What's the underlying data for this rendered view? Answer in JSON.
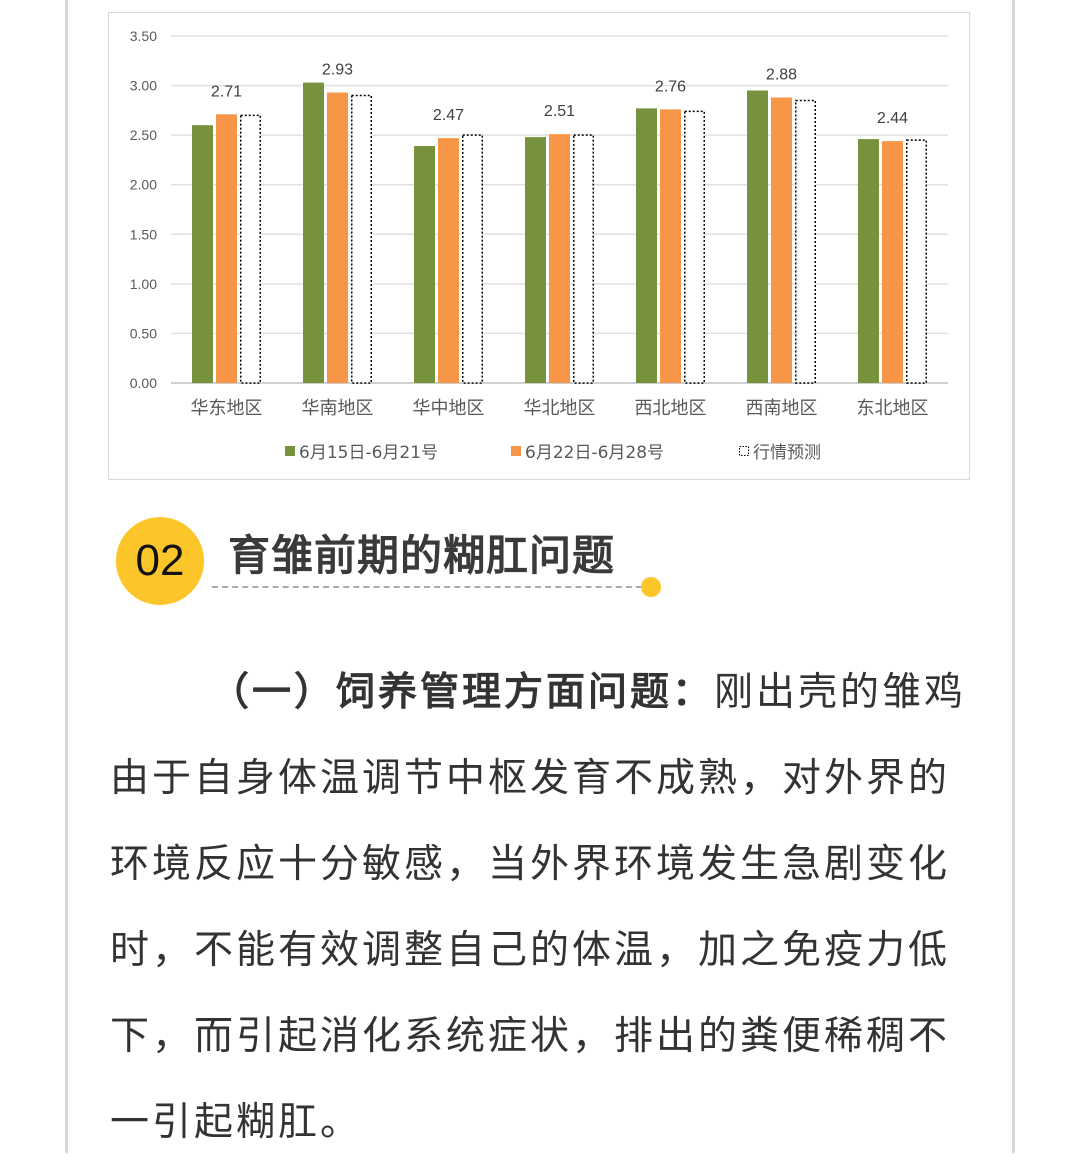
{
  "colors": {
    "green": "#76923c",
    "orange": "#f79646",
    "accent": "#fcc52a",
    "text": "#333333"
  },
  "chart_data": {
    "type": "bar",
    "categories": [
      "华东地区",
      "华南地区",
      "华中地区",
      "华北地区",
      "西北地区",
      "西南地区",
      "东北地区"
    ],
    "series": [
      {
        "name": "6月15日-6月21号",
        "values": [
          2.6,
          3.03,
          2.39,
          2.48,
          2.77,
          2.95,
          2.46
        ],
        "color": "#76923c",
        "style": "solid"
      },
      {
        "name": "6月22日-6月28号",
        "values": [
          2.71,
          2.93,
          2.47,
          2.51,
          2.76,
          2.88,
          2.44
        ],
        "color": "#f79646",
        "style": "solid"
      },
      {
        "name": "行情预测",
        "values": [
          2.7,
          2.9,
          2.5,
          2.5,
          2.74,
          2.85,
          2.45
        ],
        "color": "#000000",
        "style": "dotted-outline"
      }
    ],
    "data_labels": [
      "2.71",
      "2.93",
      "2.47",
      "2.51",
      "2.76",
      "2.88",
      "2.44"
    ],
    "yticks": [
      "0.00",
      "0.50",
      "1.00",
      "1.50",
      "2.00",
      "2.50",
      "3.00",
      "3.50"
    ],
    "ylim": [
      0,
      3.5
    ],
    "grid": true,
    "legend": "bottom"
  },
  "section": {
    "number": "02",
    "title": "育雏前期的糊肛问题"
  },
  "paragraph": {
    "heading": "（一）饲养管理方面问题：",
    "first_rest": "刚出壳的雏鸡",
    "lines": [
      "由于自身体温调节中枢发育不成熟，对外界的",
      "环境反应十分敏感，当外界环境发生急剧变化",
      "时，不能有效调整自己的体温，加之免疫力低",
      "下，而引起消化系统症状，排出的粪便稀稠不",
      "一引起糊肛。"
    ]
  }
}
